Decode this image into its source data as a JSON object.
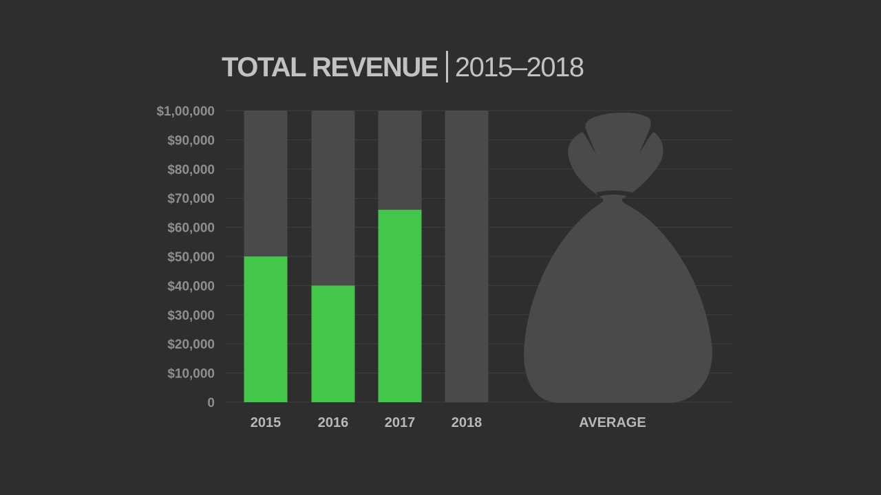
{
  "chart_data": {
    "type": "bar",
    "title": "TOTAL REVENUE",
    "subtitle": "2015–2018",
    "categories": [
      "2015",
      "2016",
      "2017",
      "2018"
    ],
    "values": [
      50000,
      40000,
      66000,
      null
    ],
    "ylim": [
      0,
      100000
    ],
    "yticks": [
      0,
      10000,
      20000,
      30000,
      40000,
      50000,
      60000,
      70000,
      80000,
      90000,
      100000
    ],
    "ytick_labels": [
      "0",
      "$10,000",
      "$20,000",
      "$30,000",
      "$40,000",
      "$50,000",
      "$60,000",
      "$70,000",
      "$80,000",
      "$90,000",
      "$1,00,000"
    ],
    "extra_category": "AVERAGE",
    "grid": true,
    "colors": {
      "background": "#2e2e2e",
      "bar_fill": "#43c74b",
      "bar_track": "#4a4a4a",
      "grid": "#3f3f3f",
      "money_bag": "#4a4a4a"
    },
    "extra_icon": "money-bag-icon"
  }
}
